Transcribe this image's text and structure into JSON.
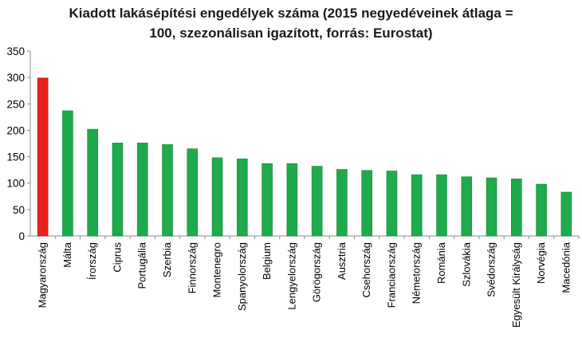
{
  "chart_data": {
    "type": "bar",
    "title_line1": "Kiadott lakásépítési engedélyek száma (2015 negyedéveinek átlaga =",
    "title_line2": "100, szezonálisan igazított, forrás: Eurostat)",
    "categories": [
      "Magyarország",
      "Málta",
      "Írország",
      "Ciprus",
      "Portugália",
      "Szerbia",
      "Finnország",
      "Montenegro",
      "Spanyolország",
      "Belgium",
      "Lengyelország",
      "Görögország",
      "Ausztria",
      "Csehország",
      "Franciaország",
      "Németország",
      "Románia",
      "Szlovákia",
      "Svédország",
      "Egyesült Királyság",
      "Norvégia",
      "Macedónia"
    ],
    "values": [
      299,
      237,
      202,
      176,
      176,
      173,
      165,
      148,
      146,
      137,
      137,
      132,
      126,
      124,
      123,
      116,
      116,
      112,
      110,
      108,
      98,
      83
    ],
    "highlight_index": 0,
    "ylim": [
      0,
      350
    ],
    "yticks": [
      0,
      50,
      100,
      150,
      200,
      250,
      300,
      350
    ],
    "xlabel": "",
    "ylabel": "",
    "grid": false,
    "colors": {
      "bar": "#1faa4b",
      "bar_stroke": "#178a3a",
      "highlight": "#e8221b",
      "highlight_stroke": "#b51510",
      "axis": "#8c8c8c"
    }
  }
}
